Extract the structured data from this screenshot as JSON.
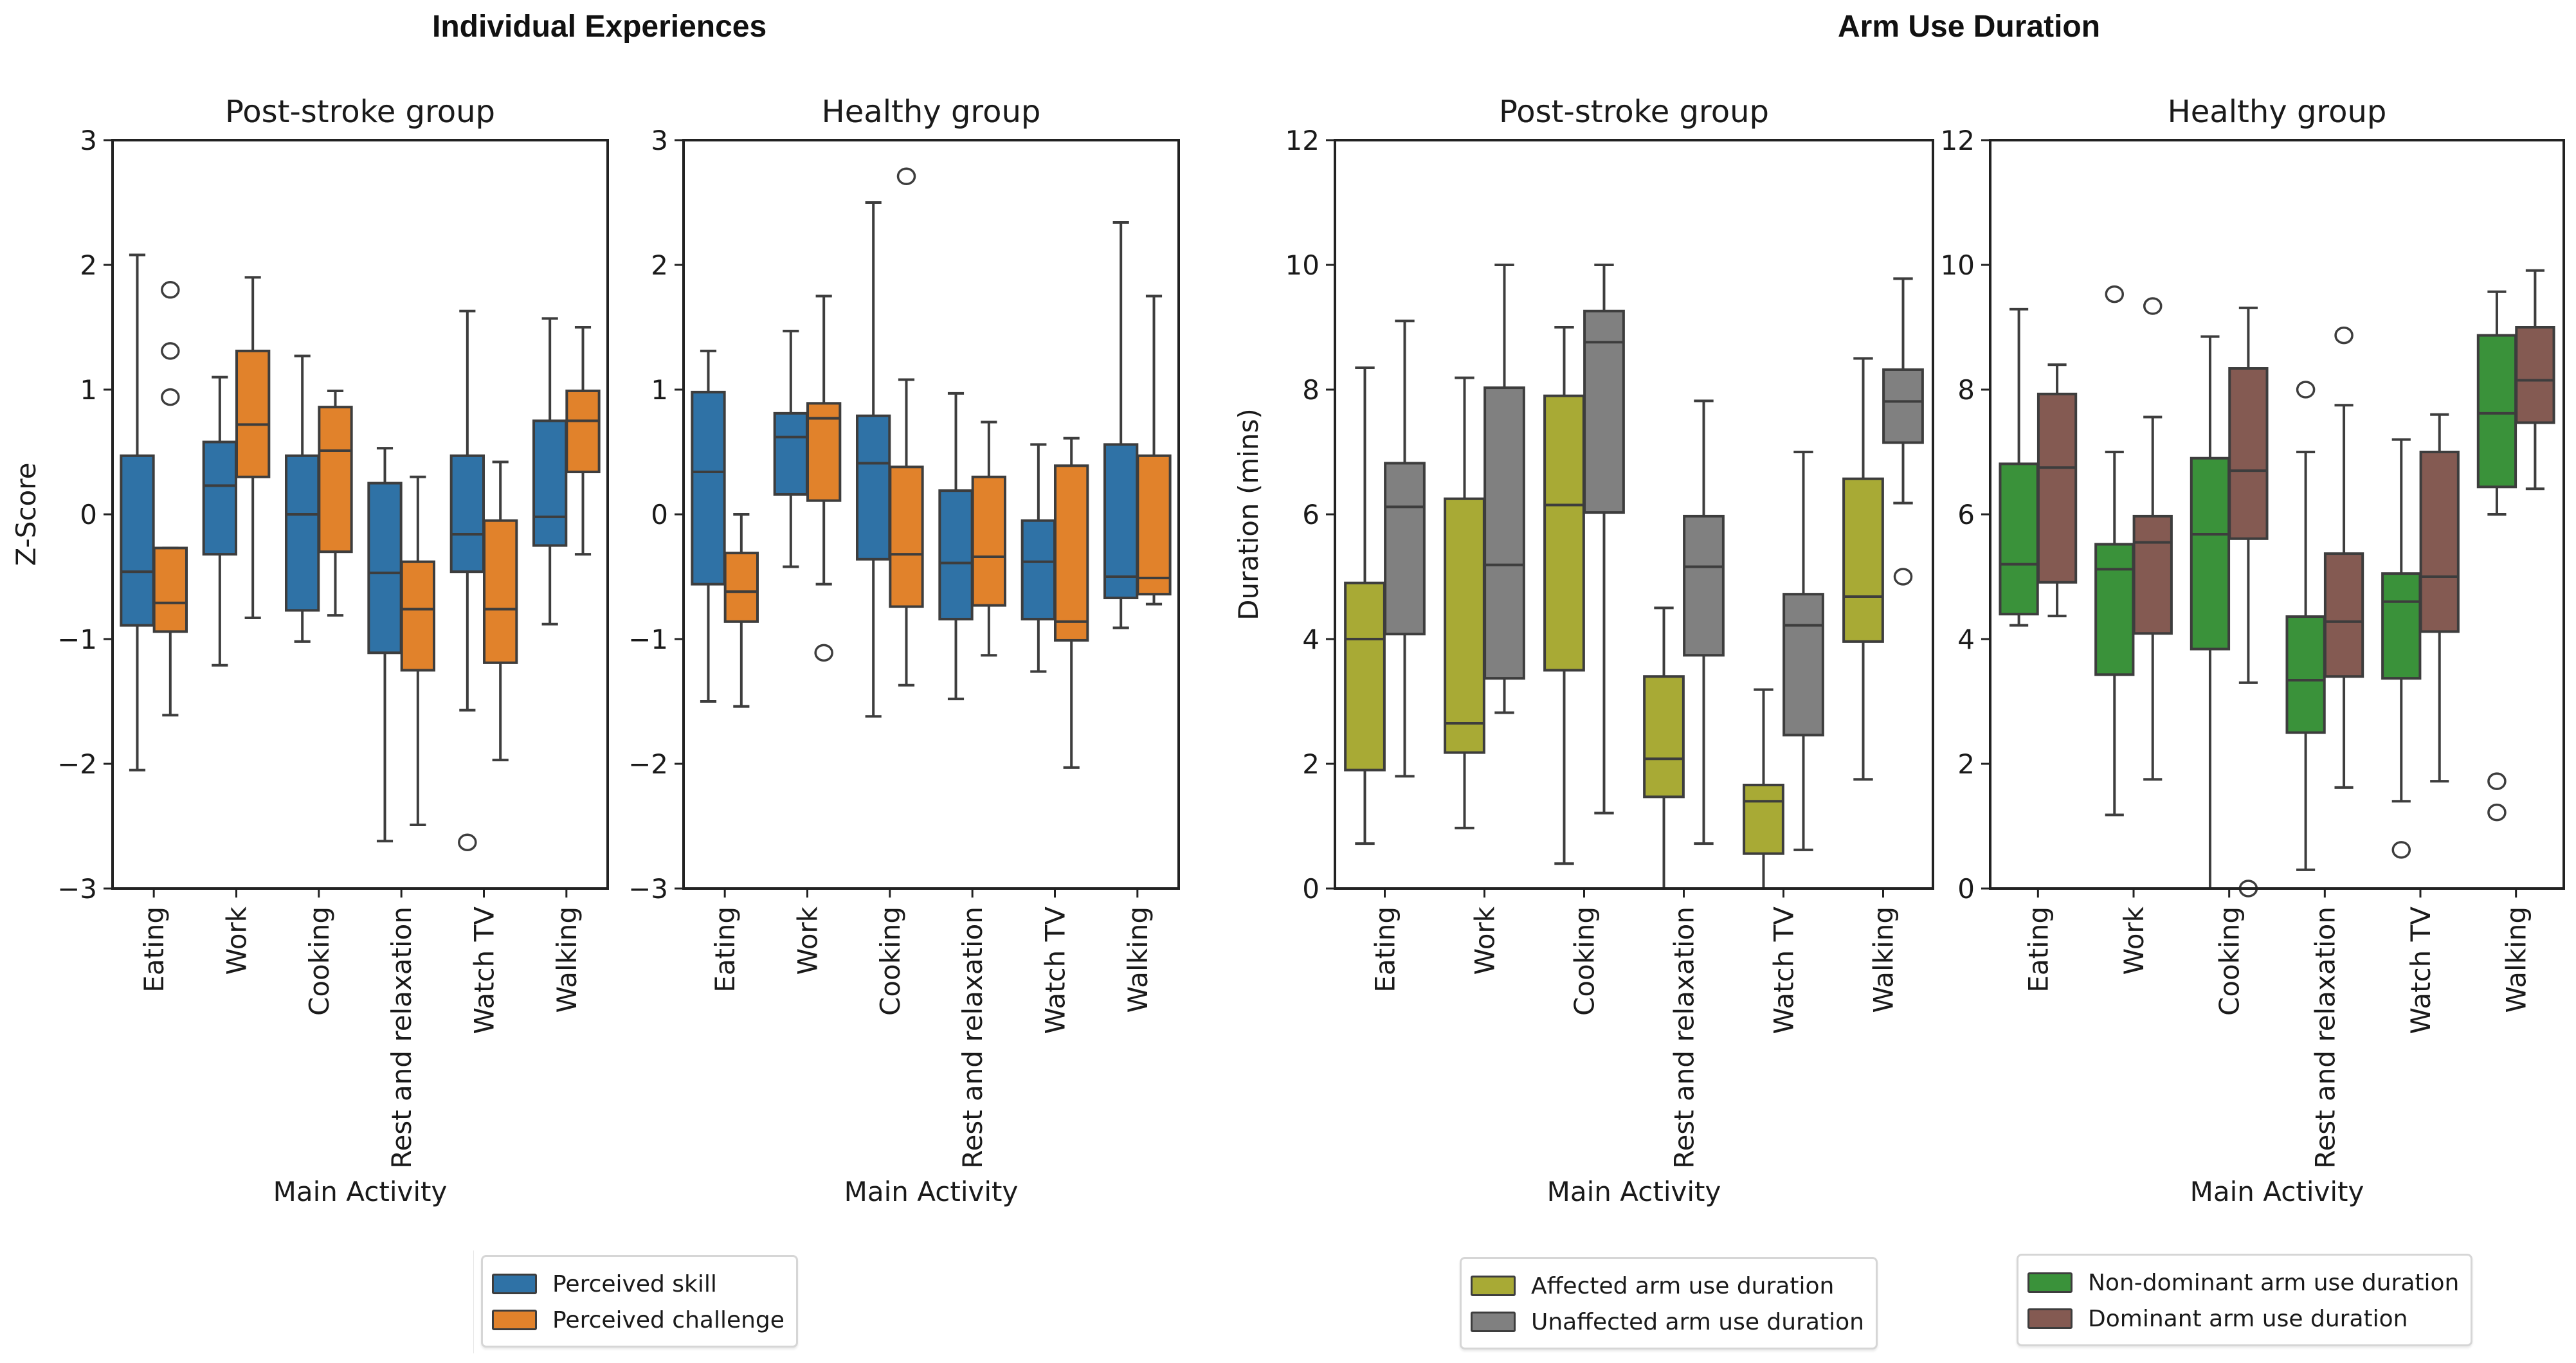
{
  "figure": {
    "suptitles": [
      "Individual Experiences",
      "Arm Use Duration"
    ]
  },
  "colors": {
    "perceived_skill": "#2f72a6",
    "perceived_challenge": "#e1822b",
    "affected": "#a8aa35",
    "unaffected": "#808080",
    "non_dominant": "#3a923a",
    "dominant": "#845a52",
    "edge": "#3d3d3d"
  },
  "legends": [
    {
      "items": [
        {
          "label": "Perceived skill",
          "color_key": "perceived_skill"
        },
        {
          "label": "Perceived challenge",
          "color_key": "perceived_challenge"
        }
      ]
    },
    {
      "items": [
        {
          "label": "Affected arm use duration",
          "color_key": "affected"
        },
        {
          "label": "Unaffected arm use duration",
          "color_key": "unaffected"
        }
      ]
    },
    {
      "items": [
        {
          "label": "Non-dominant arm use duration",
          "color_key": "non_dominant"
        },
        {
          "label": "Dominant arm use duration",
          "color_key": "dominant"
        }
      ]
    }
  ],
  "chart_data": [
    {
      "type": "box",
      "section": "Individual Experiences",
      "title": "Post-stroke group",
      "xlabel": "Main Activity",
      "ylabel": "Z-Score",
      "ylim": [
        -3,
        3
      ],
      "yticks": [
        -3,
        -2,
        -1,
        0,
        1,
        2,
        3
      ],
      "ytick_labels": [
        "−3",
        "−2",
        "−1",
        "0",
        "1",
        "2",
        "3"
      ],
      "categories": [
        "Eating",
        "Work",
        "Cooking",
        "Rest and relaxation",
        "Watch TV",
        "Walking"
      ],
      "series": [
        {
          "name": "Perceived skill",
          "color_key": "perceived_skill",
          "boxes": [
            {
              "whislo": -2.05,
              "q1": -0.89,
              "med": -0.46,
              "q3": 0.47,
              "whishi": 2.08,
              "fliers": []
            },
            {
              "whislo": -1.21,
              "q1": -0.32,
              "med": 0.23,
              "q3": 0.58,
              "whishi": 1.1,
              "fliers": []
            },
            {
              "whislo": -1.02,
              "q1": -0.77,
              "med": 0.0,
              "q3": 0.47,
              "whishi": 1.27,
              "fliers": []
            },
            {
              "whislo": -2.62,
              "q1": -1.11,
              "med": -0.47,
              "q3": 0.25,
              "whishi": 0.53,
              "fliers": []
            },
            {
              "whislo": -1.57,
              "q1": -0.46,
              "med": -0.16,
              "q3": 0.47,
              "whishi": 1.63,
              "fliers": [
                -2.63
              ]
            },
            {
              "whislo": -0.88,
              "q1": -0.25,
              "med": -0.02,
              "q3": 0.75,
              "whishi": 1.57,
              "fliers": []
            }
          ]
        },
        {
          "name": "Perceived challenge",
          "color_key": "perceived_challenge",
          "boxes": [
            {
              "whislo": -1.61,
              "q1": -0.94,
              "med": -0.71,
              "q3": -0.27,
              "whishi": -0.27,
              "fliers": [
                0.94,
                1.31,
                1.8
              ]
            },
            {
              "whislo": -0.83,
              "q1": 0.3,
              "med": 0.72,
              "q3": 1.31,
              "whishi": 1.9,
              "fliers": []
            },
            {
              "whislo": -0.81,
              "q1": -0.3,
              "med": 0.51,
              "q3": 0.86,
              "whishi": 0.99,
              "fliers": []
            },
            {
              "whislo": -2.49,
              "q1": -1.25,
              "med": -0.76,
              "q3": -0.38,
              "whishi": 0.3,
              "fliers": []
            },
            {
              "whislo": -1.97,
              "q1": -1.19,
              "med": -0.76,
              "q3": -0.05,
              "whishi": 0.42,
              "fliers": []
            },
            {
              "whislo": -0.32,
              "q1": 0.34,
              "med": 0.75,
              "q3": 0.99,
              "whishi": 1.5,
              "fliers": []
            }
          ]
        }
      ]
    },
    {
      "type": "box",
      "section": "Individual Experiences",
      "title": "Healthy group",
      "xlabel": "Main Activity",
      "ylabel": "",
      "ylim": [
        -3,
        3
      ],
      "yticks": [
        -3,
        -2,
        -1,
        0,
        1,
        2,
        3
      ],
      "ytick_labels": [
        "−3",
        "−2",
        "−1",
        "0",
        "1",
        "2",
        "3"
      ],
      "categories": [
        "Eating",
        "Work",
        "Cooking",
        "Rest and relaxation",
        "Watch TV",
        "Walking"
      ],
      "series": [
        {
          "name": "Perceived skill",
          "color_key": "perceived_skill",
          "boxes": [
            {
              "whislo": -1.5,
              "q1": -0.56,
              "med": 0.34,
              "q3": 0.98,
              "whishi": 1.31,
              "fliers": []
            },
            {
              "whislo": -0.42,
              "q1": 0.16,
              "med": 0.62,
              "q3": 0.81,
              "whishi": 1.47,
              "fliers": []
            },
            {
              "whislo": -1.62,
              "q1": -0.36,
              "med": 0.41,
              "q3": 0.79,
              "whishi": 2.5,
              "fliers": []
            },
            {
              "whislo": -1.48,
              "q1": -0.84,
              "med": -0.39,
              "q3": 0.19,
              "whishi": 0.97,
              "fliers": []
            },
            {
              "whislo": -1.26,
              "q1": -0.84,
              "med": -0.38,
              "q3": -0.05,
              "whishi": 0.56,
              "fliers": []
            },
            {
              "whislo": -0.91,
              "q1": -0.67,
              "med": -0.5,
              "q3": 0.56,
              "whishi": 2.34,
              "fliers": []
            }
          ]
        },
        {
          "name": "Perceived challenge",
          "color_key": "perceived_challenge",
          "boxes": [
            {
              "whislo": -1.54,
              "q1": -0.86,
              "med": -0.62,
              "q3": -0.31,
              "whishi": 0.0,
              "fliers": []
            },
            {
              "whislo": -0.56,
              "q1": 0.11,
              "med": 0.77,
              "q3": 0.89,
              "whishi": 1.75,
              "fliers": [
                -1.11
              ]
            },
            {
              "whislo": -1.37,
              "q1": -0.74,
              "med": -0.32,
              "q3": 0.38,
              "whishi": 1.08,
              "fliers": [
                2.71
              ]
            },
            {
              "whislo": -1.13,
              "q1": -0.73,
              "med": -0.34,
              "q3": 0.3,
              "whishi": 0.74,
              "fliers": []
            },
            {
              "whislo": -2.03,
              "q1": -1.01,
              "med": -0.86,
              "q3": 0.39,
              "whishi": 0.61,
              "fliers": []
            },
            {
              "whislo": -0.72,
              "q1": -0.64,
              "med": -0.51,
              "q3": 0.47,
              "whishi": 1.75,
              "fliers": []
            }
          ]
        }
      ]
    },
    {
      "type": "box",
      "section": "Arm Use Duration",
      "title": "Post-stroke group",
      "xlabel": "Main Activity",
      "ylabel": "Duration (mins)",
      "ylim": [
        0,
        12
      ],
      "yticks": [
        0,
        2,
        4,
        6,
        8,
        10,
        12
      ],
      "ytick_labels": [
        "0",
        "2",
        "4",
        "6",
        "8",
        "10",
        "12"
      ],
      "categories": [
        "Eating",
        "Work",
        "Cooking",
        "Rest and relaxation",
        "Watch TV",
        "Walking"
      ],
      "series": [
        {
          "name": "Affected arm use duration",
          "color_key": "affected",
          "boxes": [
            {
              "whislo": 0.72,
              "q1": 1.9,
              "med": 4.0,
              "q3": 4.9,
              "whishi": 8.35,
              "fliers": []
            },
            {
              "whislo": 0.97,
              "q1": 2.18,
              "med": 2.65,
              "q3": 6.25,
              "whishi": 8.19,
              "fliers": []
            },
            {
              "whislo": 0.4,
              "q1": 3.5,
              "med": 6.15,
              "q3": 7.9,
              "whishi": 9.0,
              "fliers": []
            },
            {
              "whislo": 0.0,
              "q1": 1.47,
              "med": 2.08,
              "q3": 3.4,
              "whishi": 4.5,
              "fliers": []
            },
            {
              "whislo": 0.0,
              "q1": 0.56,
              "med": 1.4,
              "q3": 1.66,
              "whishi": 3.19,
              "fliers": []
            },
            {
              "whislo": 1.75,
              "q1": 3.96,
              "med": 4.68,
              "q3": 6.57,
              "whishi": 8.5,
              "fliers": []
            }
          ]
        },
        {
          "name": "Unaffected arm use duration",
          "color_key": "unaffected",
          "boxes": [
            {
              "whislo": 1.8,
              "q1": 4.08,
              "med": 6.12,
              "q3": 6.82,
              "whishi": 9.1,
              "fliers": []
            },
            {
              "whislo": 2.82,
              "q1": 3.37,
              "med": 5.19,
              "q3": 8.03,
              "whishi": 10.0,
              "fliers": []
            },
            {
              "whislo": 1.21,
              "q1": 6.03,
              "med": 8.76,
              "q3": 9.26,
              "whishi": 10.0,
              "fliers": []
            },
            {
              "whislo": 0.72,
              "q1": 3.74,
              "med": 5.16,
              "q3": 5.97,
              "whishi": 7.82,
              "fliers": []
            },
            {
              "whislo": 0.62,
              "q1": 2.46,
              "med": 4.22,
              "q3": 4.72,
              "whishi": 7.0,
              "fliers": []
            },
            {
              "whislo": 6.18,
              "q1": 7.15,
              "med": 7.81,
              "q3": 8.32,
              "whishi": 9.78,
              "fliers": [
                5.0
              ]
            }
          ]
        }
      ]
    },
    {
      "type": "box",
      "section": "Arm Use Duration",
      "title": "Healthy group",
      "xlabel": "Main Activity",
      "ylabel": "",
      "ylim": [
        0,
        12
      ],
      "yticks": [
        0,
        2,
        4,
        6,
        8,
        10,
        12
      ],
      "ytick_labels": [
        "0",
        "2",
        "4",
        "6",
        "8",
        "10",
        "12"
      ],
      "categories": [
        "Eating",
        "Work",
        "Cooking",
        "Rest and relaxation",
        "Watch TV",
        "Walking"
      ],
      "series": [
        {
          "name": "Non-dominant arm use duration",
          "color_key": "non_dominant",
          "boxes": [
            {
              "whislo": 4.22,
              "q1": 4.4,
              "med": 5.2,
              "q3": 6.81,
              "whishi": 9.29,
              "fliers": []
            },
            {
              "whislo": 1.18,
              "q1": 3.43,
              "med": 5.12,
              "q3": 5.52,
              "whishi": 7.0,
              "fliers": [
                9.53
              ]
            },
            {
              "whislo": 0.0,
              "q1": 3.84,
              "med": 5.68,
              "q3": 6.9,
              "whishi": 8.85,
              "fliers": []
            },
            {
              "whislo": 0.3,
              "q1": 2.5,
              "med": 3.34,
              "q3": 4.36,
              "whishi": 7.0,
              "fliers": [
                8.0
              ]
            },
            {
              "whislo": 1.4,
              "q1": 3.37,
              "med": 4.6,
              "q3": 5.05,
              "whishi": 7.2,
              "fliers": [
                0.62
              ]
            },
            {
              "whislo": 6.0,
              "q1": 6.44,
              "med": 7.62,
              "q3": 8.87,
              "whishi": 9.57,
              "fliers": [
                1.72,
                1.22
              ]
            }
          ]
        },
        {
          "name": "Dominant arm use duration",
          "color_key": "dominant",
          "boxes": [
            {
              "whislo": 4.37,
              "q1": 4.91,
              "med": 6.75,
              "q3": 7.93,
              "whishi": 8.4,
              "fliers": []
            },
            {
              "whislo": 1.75,
              "q1": 4.09,
              "med": 5.55,
              "q3": 5.97,
              "whishi": 7.56,
              "fliers": [
                9.34
              ]
            },
            {
              "whislo": 3.3,
              "q1": 5.61,
              "med": 6.7,
              "q3": 8.34,
              "whishi": 9.31,
              "fliers": [
                0.0
              ]
            },
            {
              "whislo": 1.62,
              "q1": 3.4,
              "med": 4.28,
              "q3": 5.37,
              "whishi": 7.75,
              "fliers": [
                8.87
              ]
            },
            {
              "whislo": 1.72,
              "q1": 4.12,
              "med": 5.0,
              "q3": 7.0,
              "whishi": 7.6,
              "fliers": []
            },
            {
              "whislo": 6.41,
              "q1": 7.47,
              "med": 8.15,
              "q3": 9.0,
              "whishi": 9.91,
              "fliers": []
            }
          ]
        }
      ]
    }
  ]
}
